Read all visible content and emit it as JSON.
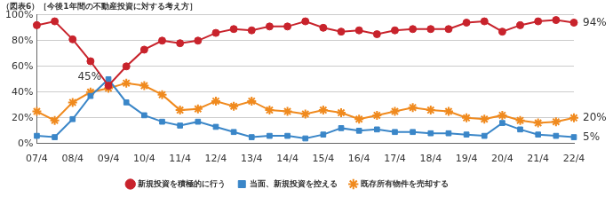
{
  "chart_data": {
    "type": "line",
    "title": "（図表6）［今後1年間の不動産投資に対する考え方］",
    "categories": [
      "07/4",
      null,
      "08/4",
      null,
      "09/4",
      null,
      "10/4",
      null,
      "11/4",
      null,
      "12/4",
      null,
      "13/4",
      null,
      "14/4",
      null,
      "15/4",
      null,
      "16/4",
      null,
      "17/4",
      null,
      "18/4",
      null,
      "19/4",
      null,
      "20/4",
      null,
      "21/4",
      null,
      "22/4"
    ],
    "series": [
      {
        "name": "新規投資を積極的に行う",
        "color": "#c8232c",
        "marker": "circle",
        "values": [
          92,
          95,
          81,
          64,
          45,
          60,
          73,
          80,
          78,
          80,
          86,
          89,
          88,
          91,
          91,
          95,
          90,
          87,
          88,
          85,
          88,
          89,
          89,
          89,
          94,
          95,
          87,
          92,
          95,
          96,
          94
        ]
      },
      {
        "name": "当面、新規投資を控える",
        "color": "#3a86c8",
        "marker": "square",
        "values": [
          6,
          5,
          19,
          37,
          50,
          32,
          22,
          17,
          14,
          17,
          13,
          9,
          5,
          6,
          6,
          4,
          7,
          12,
          10,
          11,
          9,
          9,
          8,
          8,
          7,
          6,
          16,
          11,
          7,
          6,
          5
        ]
      },
      {
        "name": "既存所有物件を売却する",
        "color": "#f08a1e",
        "marker": "star",
        "values": [
          25,
          18,
          32,
          40,
          43,
          47,
          45,
          38,
          26,
          27,
          33,
          29,
          33,
          26,
          25,
          23,
          26,
          24,
          19,
          22,
          25,
          28,
          26,
          25,
          20,
          19,
          22,
          18,
          16,
          17,
          20
        ]
      }
    ],
    "ylim": [
      0,
      100
    ],
    "yticks": [
      {
        "value": 0,
        "label": "0%"
      },
      {
        "value": 20,
        "label": "20%"
      },
      {
        "value": 40,
        "label": "40%"
      },
      {
        "value": 60,
        "label": "60%"
      },
      {
        "value": 80,
        "label": "80%"
      },
      {
        "value": 100,
        "label": "100%"
      }
    ],
    "grid": true,
    "legend": "bottom",
    "annotations": [
      {
        "text": "45%",
        "series": "新規投資を積極的に行う",
        "category": "09/4"
      },
      {
        "text": "94%",
        "series": "新規投資を積極的に行う",
        "category": "22/4"
      },
      {
        "text": "20%",
        "series": "既存所有物件を売却する",
        "category": "22/4"
      },
      {
        "text": "5%",
        "series": "当面、新規投資を控える",
        "category": "22/4"
      }
    ]
  }
}
